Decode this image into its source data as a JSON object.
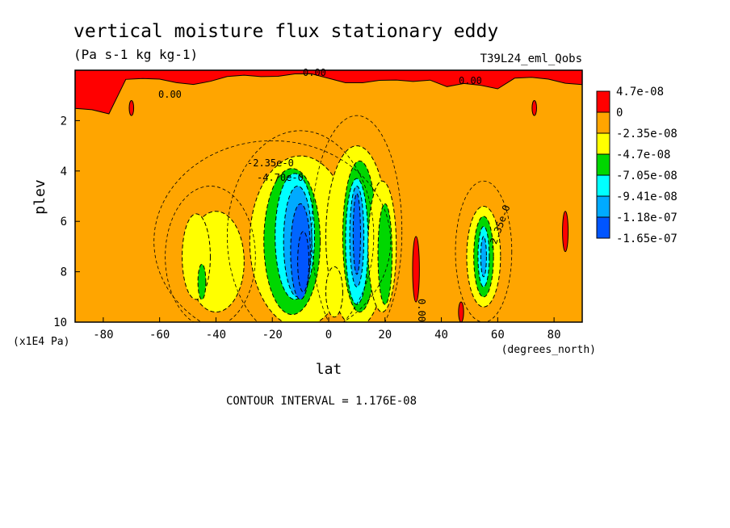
{
  "chart_data": {
    "type": "heatmap",
    "title": "vertical moisture flux stationary eddy",
    "subtitle": "(Pa s-1 kg kg-1)",
    "run_label": "T39L24_eml_Qobs",
    "xlabel": "lat",
    "x_units": "(degrees_north)",
    "ylabel": "plev",
    "y_units": "(x1E4 Pa)",
    "xlim": [
      -90,
      90
    ],
    "ylim": [
      10,
      0
    ],
    "x_ticks": [
      "-80",
      "-60",
      "-40",
      "-20",
      "0",
      "20",
      "40",
      "60",
      "80"
    ],
    "y_ticks": [
      "2",
      "4",
      "6",
      "8",
      "10"
    ],
    "contour_interval_text": "CONTOUR INTERVAL = 1.176E-08",
    "legend": [
      {
        "label": "4.7e-08",
        "color": "#ff0000"
      },
      {
        "label": "0",
        "color": "#ffa500"
      },
      {
        "label": "-2.35e-08",
        "color": "#ffff00"
      },
      {
        "label": "-4.7e-08",
        "color": "#00d700"
      },
      {
        "label": "-7.05e-08",
        "color": "#00ffff"
      },
      {
        "label": "-9.41e-08",
        "color": "#00aaff"
      },
      {
        "label": "-1.18e-07",
        "color": "#0066ff"
      },
      {
        "label": "-1.65e-07",
        "color": ""
      }
    ],
    "contour_labels": [
      "0.00",
      "0.00",
      "0.00",
      "-2.35e-0",
      "-4.70e-0",
      "-2.35e-0",
      "0.00"
    ],
    "blobs": [
      {
        "lat": -10,
        "plev": 6.8,
        "rx": 18,
        "ry": 3.4,
        "level": 1
      },
      {
        "lat": -13,
        "plev": 6.8,
        "rx": 10,
        "ry": 2.9,
        "level": 2
      },
      {
        "lat": -12,
        "plev": 6.6,
        "rx": 7,
        "ry": 2.5,
        "level": 3
      },
      {
        "lat": -11,
        "plev": 6.8,
        "rx": 5,
        "ry": 2.2,
        "level": 4
      },
      {
        "lat": -10,
        "plev": 7.2,
        "rx": 3.5,
        "ry": 1.9,
        "level": 5
      },
      {
        "lat": -9,
        "plev": 7.6,
        "rx": 2,
        "ry": 1.2,
        "level": 6
      },
      {
        "lat": 10,
        "plev": 6.6,
        "rx": 11,
        "ry": 3.6,
        "level": 1
      },
      {
        "lat": 11,
        "plev": 6.6,
        "rx": 6,
        "ry": 3.0,
        "level": 2
      },
      {
        "lat": 10,
        "plev": 6.8,
        "rx": 4,
        "ry": 2.5,
        "level": 3
      },
      {
        "lat": 10,
        "plev": 6.6,
        "rx": 2.5,
        "ry": 2.0,
        "level": 4
      },
      {
        "lat": 10,
        "plev": 6.5,
        "rx": 1.3,
        "ry": 1.6,
        "level": 5
      },
      {
        "lat": 19,
        "plev": 7.0,
        "rx": 5,
        "ry": 2.6,
        "level": 1
      },
      {
        "lat": 20,
        "plev": 7.3,
        "rx": 2.5,
        "ry": 2.0,
        "level": 2
      },
      {
        "lat": 2,
        "plev": 8.8,
        "rx": 3,
        "ry": 1.0,
        "level": 1
      },
      {
        "lat": -40,
        "plev": 7.6,
        "rx": 10,
        "ry": 2.0,
        "level": 1
      },
      {
        "lat": -47,
        "plev": 7.4,
        "rx": 5,
        "ry": 1.7,
        "level": 1
      },
      {
        "lat": -45,
        "plev": 8.4,
        "rx": 1.4,
        "ry": 0.7,
        "level": 2
      },
      {
        "lat": 55,
        "plev": 7.4,
        "rx": 6,
        "ry": 2.0,
        "level": 1
      },
      {
        "lat": 55,
        "plev": 7.4,
        "rx": 3.5,
        "ry": 1.6,
        "level": 2
      },
      {
        "lat": 55,
        "plev": 7.4,
        "rx": 2,
        "ry": 1.2,
        "level": 3
      },
      {
        "lat": 55,
        "plev": 7.4,
        "rx": 1,
        "ry": 0.8,
        "level": 4
      }
    ],
    "positive_patches": [
      {
        "lat": 31,
        "plev": 7.9,
        "rx": 1.2,
        "ry": 1.3
      },
      {
        "lat": 84,
        "plev": 6.4,
        "rx": 1.0,
        "ry": 0.8
      },
      {
        "lat": -70,
        "plev": 1.5,
        "rx": 0.8,
        "ry": 0.3
      },
      {
        "lat": 73,
        "plev": 1.5,
        "rx": 0.8,
        "ry": 0.3
      },
      {
        "lat": 47,
        "plev": 9.6,
        "rx": 0.9,
        "ry": 0.4
      }
    ]
  }
}
